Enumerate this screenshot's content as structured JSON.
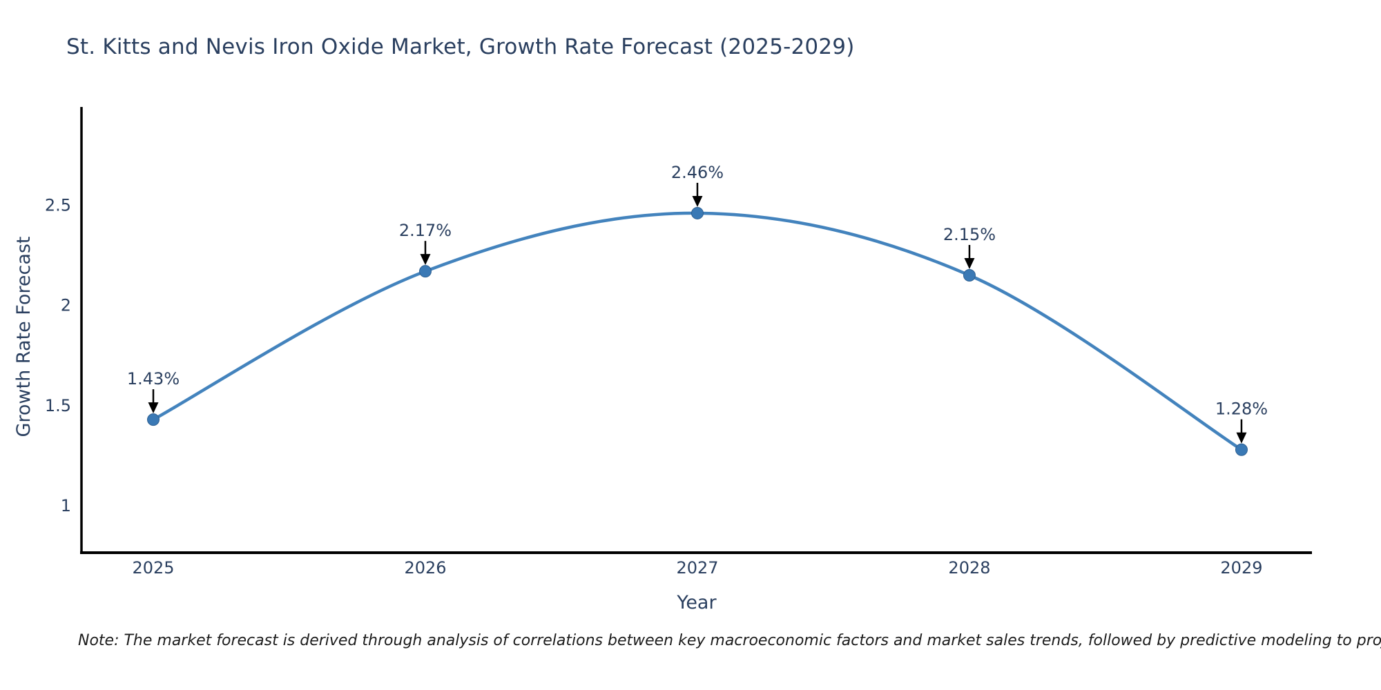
{
  "title": "St. Kitts and Nevis Iron Oxide Market, Growth Rate Forecast (2025-2029)",
  "note": "Note: The market forecast is derived through analysis of correlations between key macroeconomic factors and market sales trends, followed by predictive modeling to project future sales",
  "chart_data": {
    "type": "line",
    "title": "St. Kitts and Nevis Iron Oxide Market, Growth Rate Forecast (2025-2029)",
    "xlabel": "Year",
    "ylabel": "Growth Rate Forecast",
    "categories": [
      2025,
      2026,
      2027,
      2028,
      2029
    ],
    "series": [
      {
        "name": "Growth Rate Forecast",
        "values": [
          1.43,
          2.17,
          2.46,
          2.15,
          1.28
        ],
        "point_labels": [
          "1.43%",
          "2.17%",
          "2.46%",
          "2.15%",
          "1.28%"
        ]
      }
    ],
    "y_ticks": [
      1,
      1.5,
      2,
      2.5
    ],
    "ylim": [
      0.766,
      2.99
    ],
    "xlim": [
      2024.736,
      2029.259
    ],
    "grid": false,
    "legend": "none",
    "line_shape": "spline",
    "annotations_style": "black-down-arrows",
    "colors": {
      "line": "#4383bd",
      "marker": "#3a79b5",
      "marker_edge": "#2d5f91",
      "arrow": "#000000",
      "axis": "#000000",
      "text": "#2a3f5f",
      "note_text": "#1c1c1c"
    }
  }
}
